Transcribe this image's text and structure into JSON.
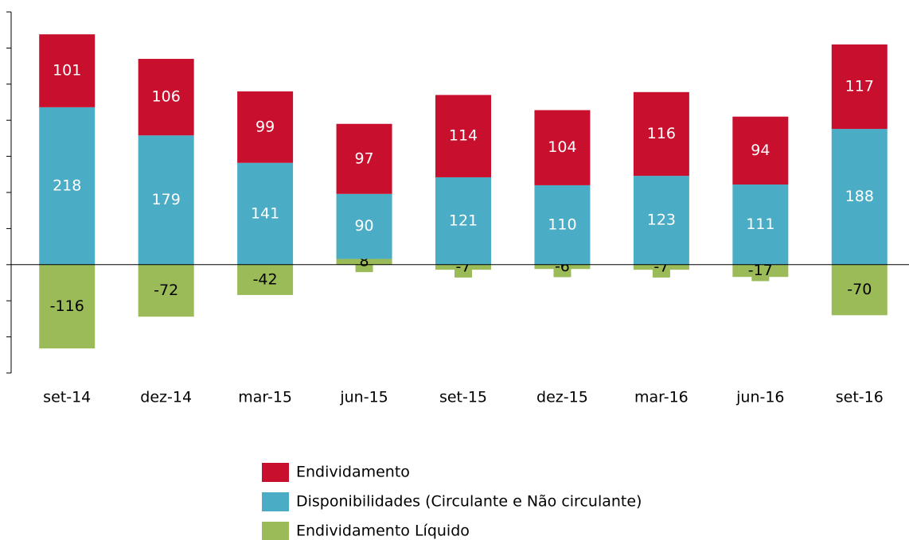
{
  "chart_data": {
    "type": "bar",
    "stacked": true,
    "categories": [
      "set-14",
      "dez-14",
      "mar-15",
      "jun-15",
      "set-15",
      "dez-15",
      "mar-16",
      "jun-16",
      "set-16"
    ],
    "series": [
      {
        "name": "Endividamento",
        "color": "#c8102e",
        "values": [
          101,
          106,
          99,
          97,
          114,
          104,
          116,
          94,
          117
        ]
      },
      {
        "name": "Disponibilidades (Circulante e Não circulante)",
        "color": "#4bacc6",
        "values": [
          218,
          179,
          141,
          90,
          121,
          110,
          123,
          111,
          188
        ]
      },
      {
        "name": "Endividamento Líquido",
        "color": "#9bbb59",
        "values": [
          -116,
          -72,
          -42,
          8,
          -7,
          -6,
          -7,
          -17,
          -70
        ]
      }
    ],
    "ylim": [
      -150,
      350
    ],
    "yticks": [
      -150,
      -100,
      -50,
      0,
      50,
      100,
      150,
      200,
      250,
      300,
      350
    ]
  }
}
